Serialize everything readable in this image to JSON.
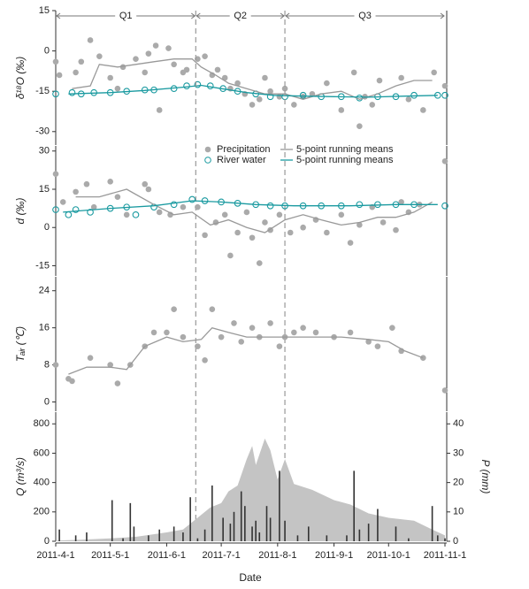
{
  "chart_data": [
    {
      "type": "scatter-line",
      "y_label": "δ¹⁸O (‰)",
      "xlim": [
        "2011-04-01",
        "2011-11-01"
      ],
      "ylim": [
        -35,
        15
      ],
      "yticks": [
        -30,
        -15,
        0,
        15
      ],
      "periods": [
        {
          "label": "Q1",
          "start": "2011-04-01",
          "end": "2011-06-17"
        },
        {
          "label": "Q2",
          "start": "2011-06-17",
          "end": "2011-08-05"
        },
        {
          "label": "Q3",
          "start": "2011-08-05",
          "end": "2011-11-01"
        }
      ],
      "series": [
        {
          "style": "dots",
          "color": "#aaaaaa",
          "x": [
            "2011-04-01",
            "2011-04-03",
            "2011-04-12",
            "2011-04-15",
            "2011-04-20",
            "2011-04-25",
            "2011-05-01",
            "2011-05-05",
            "2011-05-08",
            "2011-05-15",
            "2011-05-20",
            "2011-05-22",
            "2011-05-26",
            "2011-05-28",
            "2011-06-02",
            "2011-06-05",
            "2011-06-10",
            "2011-06-12",
            "2011-06-18",
            "2011-06-22",
            "2011-06-26",
            "2011-06-29",
            "2011-07-03",
            "2011-07-06",
            "2011-07-10",
            "2011-07-14",
            "2011-07-18",
            "2011-07-22",
            "2011-07-25",
            "2011-07-28",
            "2011-08-02",
            "2011-08-05",
            "2011-08-10",
            "2011-08-15",
            "2011-08-20",
            "2011-08-28",
            "2011-09-05",
            "2011-09-12",
            "2011-09-15",
            "2011-09-18",
            "2011-09-22",
            "2011-09-26",
            "2011-10-08",
            "2011-10-12",
            "2011-10-20",
            "2011-10-26",
            "2011-11-01"
          ],
          "values": [
            -4,
            -9,
            -8,
            -4,
            4,
            -2,
            -10,
            -14,
            -6,
            -3,
            -8,
            -1,
            2,
            -22,
            1,
            -5,
            -8,
            -7,
            -3,
            -2,
            -9,
            -7,
            -10,
            -14,
            -12,
            -16,
            -20,
            -18,
            -10,
            -15,
            -17,
            -14,
            -20,
            -17,
            -16,
            -12,
            -22,
            -8,
            -28,
            -17,
            -20,
            -11,
            -10,
            -18,
            -22,
            -8,
            -13
          ]
        },
        {
          "style": "circles",
          "color": "#1a9aa0",
          "x": [
            "2011-04-01",
            "2011-04-10",
            "2011-04-15",
            "2011-04-22",
            "2011-05-01",
            "2011-05-10",
            "2011-05-20",
            "2011-05-25",
            "2011-06-05",
            "2011-06-12",
            "2011-06-18",
            "2011-06-25",
            "2011-07-02",
            "2011-07-10",
            "2011-07-20",
            "2011-07-28",
            "2011-08-05",
            "2011-08-15",
            "2011-08-25",
            "2011-09-05",
            "2011-09-15",
            "2011-09-25",
            "2011-10-05",
            "2011-10-15",
            "2011-10-28",
            "2011-11-01"
          ],
          "values": [
            -16,
            -15.5,
            -16,
            -15.5,
            -15.5,
            -15,
            -14.5,
            -14.5,
            -14,
            -13,
            -12.5,
            -13,
            -14,
            -15,
            -16,
            -17,
            -17,
            -16.5,
            -17,
            -17,
            -17.5,
            -17,
            -17,
            -16.5,
            -16.5,
            -16.5
          ]
        },
        {
          "style": "line",
          "color": "#999999",
          "x": [
            "2011-04-10",
            "2011-04-20",
            "2011-04-25",
            "2011-05-05",
            "2011-05-15",
            "2011-05-25",
            "2011-06-05",
            "2011-06-15",
            "2011-06-20",
            "2011-06-28",
            "2011-07-05",
            "2011-07-15",
            "2011-07-25",
            "2011-08-05",
            "2011-08-15",
            "2011-08-25",
            "2011-09-05",
            "2011-09-15",
            "2011-09-25",
            "2011-10-05",
            "2011-10-15",
            "2011-10-25"
          ],
          "values": [
            -14,
            -13,
            -5,
            -6,
            -5,
            -4,
            -3,
            -3,
            -6,
            -9,
            -12,
            -14,
            -16,
            -16,
            -18,
            -16,
            -15,
            -18,
            -16,
            -13,
            -11,
            -11
          ]
        },
        {
          "style": "line",
          "color": "#1a9aa0",
          "x": [
            "2011-04-08",
            "2011-05-01",
            "2011-05-20",
            "2011-06-10",
            "2011-06-20",
            "2011-07-01",
            "2011-07-15",
            "2011-07-30",
            "2011-08-15",
            "2011-09-01",
            "2011-09-20",
            "2011-10-10",
            "2011-10-28"
          ],
          "values": [
            -16,
            -15.5,
            -14.7,
            -13.5,
            -12.8,
            -14,
            -15.5,
            -16.5,
            -16.8,
            -17,
            -17.2,
            -16.8,
            -16.5
          ]
        }
      ]
    },
    {
      "type": "scatter-line",
      "y_label": "d (‰)",
      "xlim": [
        "2011-04-01",
        "2011-11-01"
      ],
      "ylim": [
        -19,
        32
      ],
      "yticks": [
        -15,
        0,
        15,
        30
      ],
      "legend": "top-center",
      "series": [
        {
          "name": "Precipitation",
          "style": "dots",
          "color": "#aaaaaa",
          "x": [
            "2011-04-01",
            "2011-04-05",
            "2011-04-12",
            "2011-04-18",
            "2011-04-22",
            "2011-05-01",
            "2011-05-05",
            "2011-05-10",
            "2011-05-20",
            "2011-05-22",
            "2011-05-28",
            "2011-06-03",
            "2011-06-10",
            "2011-06-18",
            "2011-06-22",
            "2011-06-28",
            "2011-07-03",
            "2011-07-06",
            "2011-07-10",
            "2011-07-15",
            "2011-07-18",
            "2011-07-22",
            "2011-07-25",
            "2011-07-28",
            "2011-08-02",
            "2011-08-08",
            "2011-08-15",
            "2011-08-22",
            "2011-08-28",
            "2011-09-05",
            "2011-09-10",
            "2011-09-15",
            "2011-09-22",
            "2011-09-28",
            "2011-10-05",
            "2011-10-08",
            "2011-10-12",
            "2011-10-18",
            "2011-11-01"
          ],
          "values": [
            21,
            10,
            14,
            17,
            8,
            18,
            12,
            5,
            17,
            15,
            6,
            5,
            8,
            8,
            -3,
            2,
            5,
            -11,
            -2,
            6,
            -4,
            -14,
            2,
            -1,
            5,
            -2,
            0,
            3,
            -2,
            5,
            -6,
            1,
            8,
            2,
            -1,
            10,
            6,
            9,
            26
          ]
        },
        {
          "name": "River water",
          "style": "circles",
          "color": "#1a9aa0",
          "x": [
            "2011-04-01",
            "2011-04-08",
            "2011-04-12",
            "2011-04-20",
            "2011-05-01",
            "2011-05-10",
            "2011-05-15",
            "2011-05-25",
            "2011-06-05",
            "2011-06-15",
            "2011-06-22",
            "2011-07-01",
            "2011-07-10",
            "2011-07-20",
            "2011-07-28",
            "2011-08-05",
            "2011-08-15",
            "2011-08-25",
            "2011-09-05",
            "2011-09-15",
            "2011-09-25",
            "2011-10-05",
            "2011-10-15",
            "2011-11-01"
          ],
          "values": [
            7,
            5,
            7,
            6,
            7.5,
            8,
            5,
            8,
            9,
            11,
            10.5,
            10,
            9.5,
            9,
            8.5,
            8.5,
            8.5,
            8.5,
            8.5,
            9,
            9,
            9,
            9,
            8.5
          ]
        },
        {
          "name": "5-point running means",
          "style": "line",
          "color": "#999999",
          "x": [
            "2011-04-12",
            "2011-04-25",
            "2011-05-10",
            "2011-05-25",
            "2011-06-05",
            "2011-06-15",
            "2011-06-25",
            "2011-07-05",
            "2011-07-15",
            "2011-07-25",
            "2011-08-05",
            "2011-08-15",
            "2011-08-25",
            "2011-09-05",
            "2011-09-15",
            "2011-09-25",
            "2011-10-05",
            "2011-10-15",
            "2011-10-25"
          ],
          "values": [
            12,
            12,
            15,
            9,
            5,
            6,
            1,
            3,
            0,
            -2,
            3,
            5,
            3,
            1,
            2,
            4,
            4,
            6,
            10
          ]
        },
        {
          "name": "5-point running means",
          "style": "line",
          "color": "#1a9aa0",
          "x": [
            "2011-04-05",
            "2011-05-01",
            "2011-05-25",
            "2011-06-15",
            "2011-07-01",
            "2011-07-20",
            "2011-08-10",
            "2011-09-10",
            "2011-10-05",
            "2011-10-28"
          ],
          "values": [
            6,
            7.5,
            8.5,
            10.5,
            10,
            9,
            8.5,
            8.5,
            9,
            9
          ]
        }
      ]
    },
    {
      "type": "scatter-line",
      "y_label": "Tₐᵢᵣ (℃)",
      "xlim": [
        "2011-04-01",
        "2011-11-01"
      ],
      "ylim": [
        -2,
        27
      ],
      "yticks": [
        0,
        8,
        16,
        24
      ],
      "series": [
        {
          "style": "dots",
          "color": "#aaaaaa",
          "x": [
            "2011-04-01",
            "2011-04-08",
            "2011-04-10",
            "2011-04-20",
            "2011-05-01",
            "2011-05-05",
            "2011-05-12",
            "2011-05-20",
            "2011-05-25",
            "2011-06-01",
            "2011-06-05",
            "2011-06-10",
            "2011-06-18",
            "2011-06-22",
            "2011-06-26",
            "2011-07-01",
            "2011-07-08",
            "2011-07-12",
            "2011-07-18",
            "2011-07-22",
            "2011-07-28",
            "2011-08-02",
            "2011-08-05",
            "2011-08-10",
            "2011-08-15",
            "2011-08-22",
            "2011-09-01",
            "2011-09-10",
            "2011-09-20",
            "2011-09-25",
            "2011-10-03",
            "2011-10-08",
            "2011-10-20",
            "2011-11-01"
          ],
          "values": [
            8,
            5,
            4.5,
            9.5,
            8,
            4,
            8,
            12,
            15,
            15,
            20,
            14,
            12,
            9,
            20,
            14,
            17,
            13,
            16,
            14,
            17,
            12,
            14,
            15,
            16,
            15,
            14,
            15,
            13,
            12,
            16,
            11,
            9.5,
            2.5
          ]
        },
        {
          "style": "line",
          "color": "#999999",
          "x": [
            "2011-04-08",
            "2011-04-18",
            "2011-05-01",
            "2011-05-10",
            "2011-05-20",
            "2011-06-01",
            "2011-06-10",
            "2011-06-20",
            "2011-06-26",
            "2011-07-05",
            "2011-07-15",
            "2011-07-25",
            "2011-08-05",
            "2011-08-15",
            "2011-08-25",
            "2011-09-05",
            "2011-09-20",
            "2011-10-01",
            "2011-10-10",
            "2011-10-20"
          ],
          "values": [
            6,
            7.5,
            7.5,
            7,
            12,
            14,
            13,
            13.5,
            16,
            15,
            14,
            14,
            14,
            14,
            14,
            14,
            13.5,
            13,
            11,
            9.5
          ]
        }
      ]
    },
    {
      "type": "area-bar",
      "y_label": "Q (m³/s)",
      "y2_label": "P (mm)",
      "x_label": "Date",
      "xlim": [
        "2011-04-01",
        "2011-11-01"
      ],
      "ylim": [
        0,
        880
      ],
      "yticks": [
        0,
        200,
        400,
        600,
        800
      ],
      "y2lim": [
        0,
        44
      ],
      "y2ticks": [
        0,
        10,
        20,
        30,
        40
      ],
      "xticks": [
        {
          "value": "2011-04-01",
          "label": "2011-4-1"
        },
        {
          "value": "2011-05-01",
          "label": "2011-5-1"
        },
        {
          "value": "2011-06-01",
          "label": "2011-6-1"
        },
        {
          "value": "2011-07-01",
          "label": "2011-7-1"
        },
        {
          "value": "2011-08-01",
          "label": "2011-8-1"
        },
        {
          "value": "2011-09-01",
          "label": "2011-9-1"
        },
        {
          "value": "2011-10-01",
          "label": "2011-10-1"
        },
        {
          "value": "2011-11-01",
          "label": "2011-11-1"
        }
      ],
      "series": [
        {
          "style": "area",
          "color": "#c4c4c4",
          "x": [
            "2011-04-01",
            "2011-04-15",
            "2011-05-01",
            "2011-05-15",
            "2011-06-01",
            "2011-06-10",
            "2011-06-20",
            "2011-06-25",
            "2011-07-01",
            "2011-07-05",
            "2011-07-10",
            "2011-07-15",
            "2011-07-18",
            "2011-07-20",
            "2011-07-25",
            "2011-07-28",
            "2011-08-01",
            "2011-08-05",
            "2011-08-10",
            "2011-08-20",
            "2011-09-01",
            "2011-09-10",
            "2011-09-20",
            "2011-10-01",
            "2011-10-15",
            "2011-10-25",
            "2011-11-01"
          ],
          "values": [
            5,
            10,
            20,
            30,
            60,
            80,
            180,
            230,
            260,
            340,
            380,
            560,
            650,
            520,
            700,
            620,
            420,
            560,
            390,
            350,
            280,
            250,
            190,
            160,
            140,
            80,
            40
          ]
        },
        {
          "style": "bar",
          "color": "#333333",
          "axis": "y2",
          "x": [
            "2011-04-03",
            "2011-04-12",
            "2011-04-18",
            "2011-05-02",
            "2011-05-08",
            "2011-05-12",
            "2011-05-14",
            "2011-05-22",
            "2011-05-28",
            "2011-06-05",
            "2011-06-10",
            "2011-06-14",
            "2011-06-18",
            "2011-06-22",
            "2011-06-26",
            "2011-07-02",
            "2011-07-06",
            "2011-07-08",
            "2011-07-12",
            "2011-07-14",
            "2011-07-18",
            "2011-07-20",
            "2011-07-22",
            "2011-07-26",
            "2011-07-28",
            "2011-08-02",
            "2011-08-05",
            "2011-08-12",
            "2011-08-18",
            "2011-08-28",
            "2011-09-08",
            "2011-09-12",
            "2011-09-15",
            "2011-09-20",
            "2011-09-25",
            "2011-10-05",
            "2011-10-12",
            "2011-10-25",
            "2011-10-28",
            "2011-11-01"
          ],
          "values": [
            4,
            2,
            3,
            14,
            1,
            13,
            5,
            2,
            4,
            5,
            3,
            15,
            1,
            4,
            19,
            8,
            6,
            10,
            17,
            12,
            5,
            7,
            3,
            12,
            8,
            24,
            7,
            2,
            5,
            2,
            2,
            24,
            4,
            6,
            11,
            5,
            1,
            12,
            2,
            1
          ]
        }
      ]
    }
  ]
}
